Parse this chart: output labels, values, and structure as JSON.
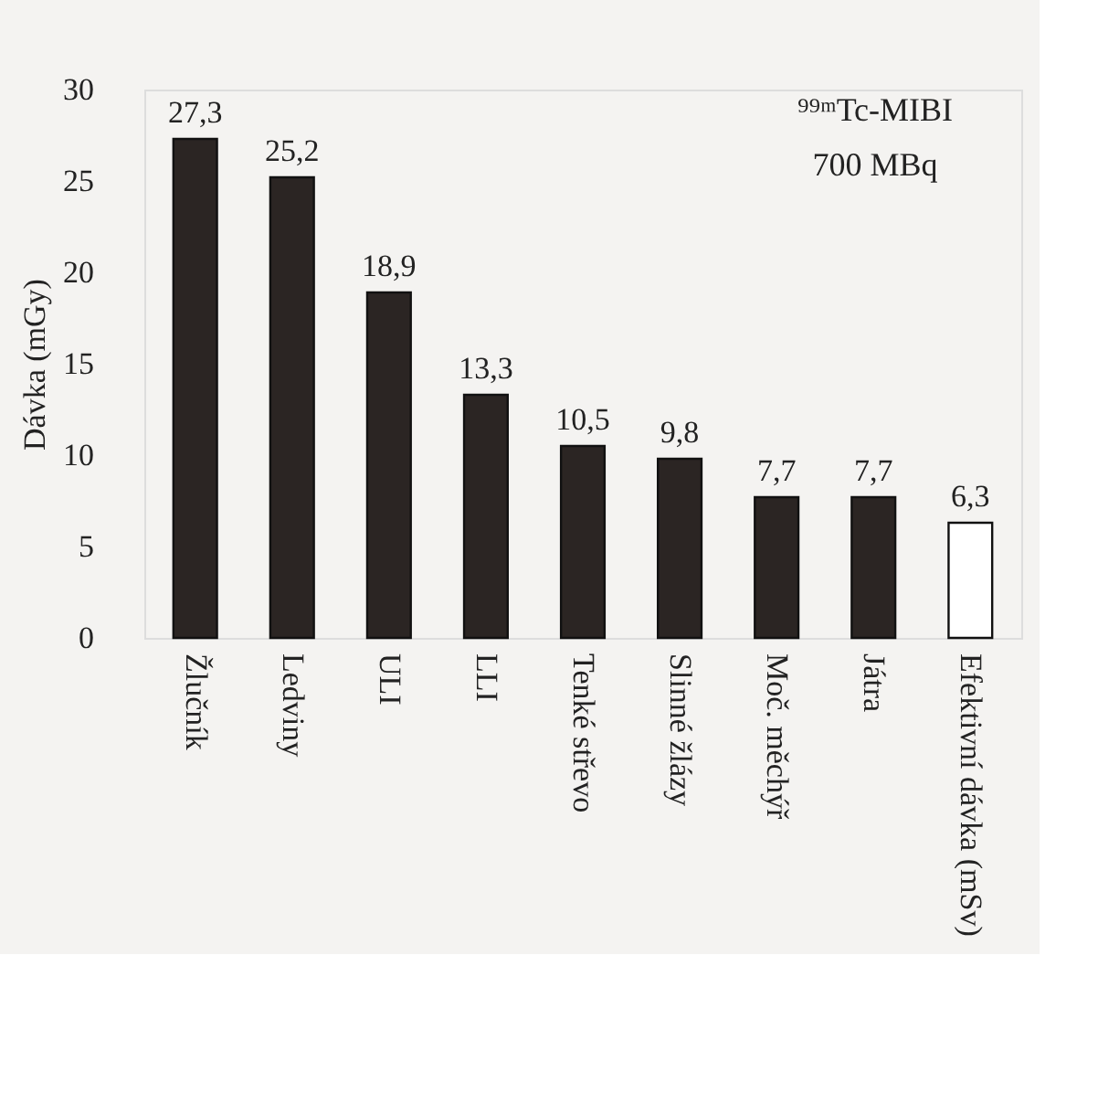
{
  "chart_data": {
    "type": "bar",
    "ylabel": "Dávka (mGy)",
    "categories": [
      "Žlučník",
      "Ledviny",
      "ULI",
      "LLI",
      "Tenké střevo",
      "Slinné žlázy",
      "Moč. měchýř",
      "Játra",
      "Efektivní dávka (mSv)"
    ],
    "values": [
      27.3,
      25.2,
      18.9,
      13.3,
      10.5,
      9.8,
      7.7,
      7.7,
      6.3
    ],
    "colors": [
      "#2b2523",
      "#2b2523",
      "#2b2523",
      "#2b2523",
      "#2b2523",
      "#2b2523",
      "#2b2523",
      "#2b2523",
      "#ffffff"
    ],
    "value_labels": [
      "27,3",
      "25,2",
      "18,9",
      "13,3",
      "10,5",
      "9,8",
      "7,7",
      "7,7",
      "6,3"
    ],
    "ylim": [
      0,
      30
    ],
    "yticks": [
      0,
      5,
      10,
      15,
      20,
      25,
      30
    ],
    "grid": false,
    "annotations": [
      "⁹⁹ᵐTc-MIBI",
      "700 MBq"
    ]
  }
}
